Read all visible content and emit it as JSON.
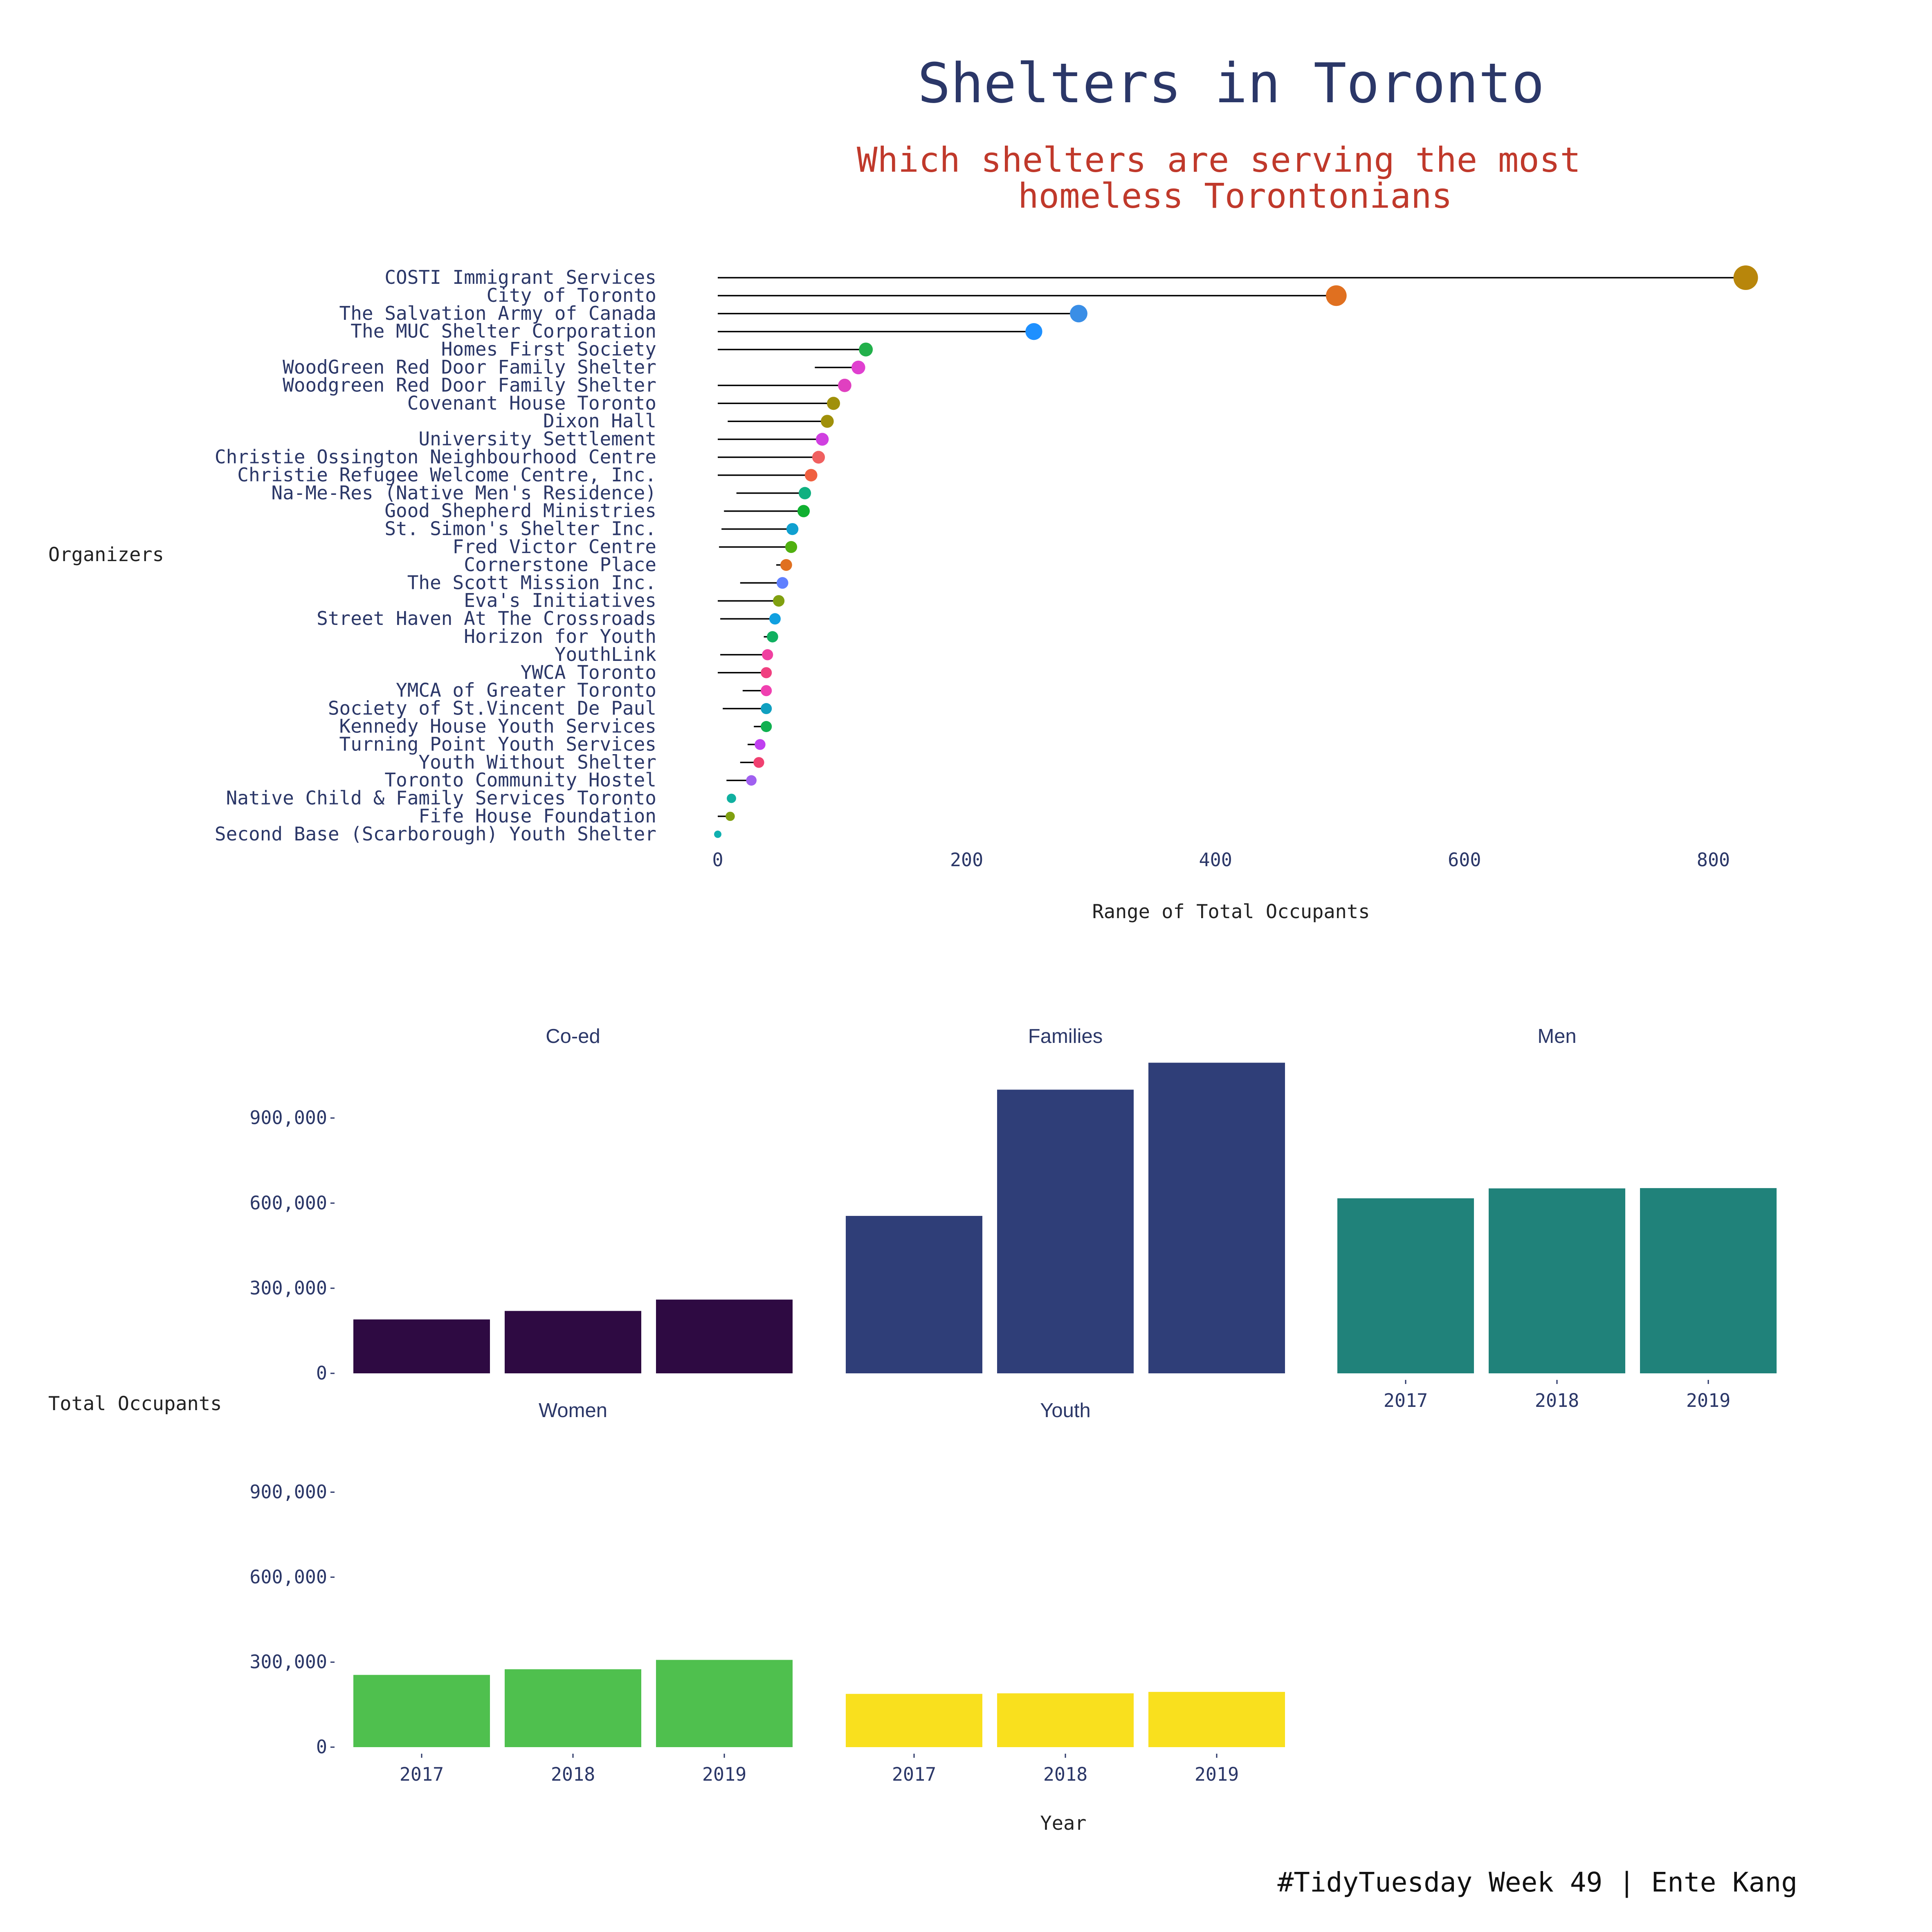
{
  "header": {
    "title": "Shelters in Toronto",
    "subtitle_line1": "Which shelters are serving the most",
    "subtitle_line2": "homeless Torontonians"
  },
  "caption": "#TidyTuesday Week 49 | Ente Kang",
  "chart_data": [
    {
      "type": "dumbbell",
      "xlabel": "Range of Total Occupants",
      "ylabel": "Organizers",
      "xlim": [
        0,
        830
      ],
      "xticks": [
        0,
        200,
        400,
        600,
        800
      ],
      "grid": false,
      "legend": "none",
      "series": [
        {
          "name": "COSTI Immigrant Services",
          "min": 0,
          "max": 826,
          "color": "#b8860b"
        },
        {
          "name": "City of Toronto",
          "min": 0,
          "max": 497,
          "color": "#e07020"
        },
        {
          "name": "The Salvation Army of Canada",
          "min": 0,
          "max": 290,
          "color": "#3a8ee6"
        },
        {
          "name": "The MUC Shelter Corporation",
          "min": 0,
          "max": 254,
          "color": "#1e90ff"
        },
        {
          "name": "Homes First Society",
          "min": 0,
          "max": 119,
          "color": "#22b04b"
        },
        {
          "name": "WoodGreen Red Door Family Shelter",
          "min": 78,
          "max": 113,
          "color": "#e040d0"
        },
        {
          "name": "Woodgreen Red Door Family Shelter",
          "min": 0,
          "max": 102,
          "color": "#e040c0"
        },
        {
          "name": "Covenant House Toronto",
          "min": 0,
          "max": 93,
          "color": "#a0900a"
        },
        {
          "name": "Dixon Hall",
          "min": 8,
          "max": 88,
          "color": "#a0900a"
        },
        {
          "name": "University Settlement",
          "min": 0,
          "max": 84,
          "color": "#d040e0"
        },
        {
          "name": "Christie Ossington Neighbourhood Centre",
          "min": 0,
          "max": 81,
          "color": "#f06060"
        },
        {
          "name": "Christie Refugee Welcome Centre, Inc.",
          "min": 0,
          "max": 75,
          "color": "#f06040"
        },
        {
          "name": "Na-Me-Res (Native Men's Residence)",
          "min": 15,
          "max": 70,
          "color": "#10b080"
        },
        {
          "name": "Good Shepherd Ministries",
          "min": 5,
          "max": 69,
          "color": "#10b030"
        },
        {
          "name": "St. Simon's Shelter Inc.",
          "min": 3,
          "max": 60,
          "color": "#10a0d0"
        },
        {
          "name": "Fred Victor Centre",
          "min": 1,
          "max": 59,
          "color": "#50b010"
        },
        {
          "name": "Cornerstone Place",
          "min": 47,
          "max": 55,
          "color": "#e07020"
        },
        {
          "name": "The Scott Mission Inc.",
          "min": 18,
          "max": 52,
          "color": "#6080ff"
        },
        {
          "name": "Eva's Initiatives",
          "min": 0,
          "max": 49,
          "color": "#80a010"
        },
        {
          "name": "Street Haven At The Crossroads",
          "min": 2,
          "max": 46,
          "color": "#10a0e0"
        },
        {
          "name": "Horizon for Youth",
          "min": 37,
          "max": 44,
          "color": "#10b060"
        },
        {
          "name": "YouthLink",
          "min": 2,
          "max": 40,
          "color": "#f040a0"
        },
        {
          "name": "YWCA Toronto",
          "min": 0,
          "max": 39,
          "color": "#f04080"
        },
        {
          "name": "YMCA of Greater Toronto",
          "min": 20,
          "max": 39,
          "color": "#f040b0"
        },
        {
          "name": "Society of St.Vincent De Paul",
          "min": 4,
          "max": 39,
          "color": "#10a0c0"
        },
        {
          "name": "Kennedy House Youth Services",
          "min": 29,
          "max": 39,
          "color": "#10b050"
        },
        {
          "name": "Turning Point Youth Services",
          "min": 24,
          "max": 34,
          "color": "#c040f0"
        },
        {
          "name": "Youth Without Shelter",
          "min": 18,
          "max": 33,
          "color": "#f04070"
        },
        {
          "name": "Toronto Community Hostel",
          "min": 7,
          "max": 27,
          "color": "#a060f0"
        },
        {
          "name": "Native Child & Family Services Toronto",
          "min": 10,
          "max": 11,
          "color": "#10b0a0"
        },
        {
          "name": "Fife House Foundation",
          "min": 0,
          "max": 10,
          "color": "#80a010"
        },
        {
          "name": "Second Base (Scarborough) Youth Shelter",
          "min": 0,
          "max": 0,
          "color": "#10b0b0"
        }
      ]
    },
    {
      "type": "bar",
      "facet": true,
      "xlabel": "Year",
      "ylabel": "Total Occupants",
      "ylim": [
        0,
        1100000
      ],
      "yticks": [
        0,
        300000,
        600000,
        900000
      ],
      "ytick_labels": [
        "0",
        "300,000",
        "600,000",
        "900,000"
      ],
      "categories": [
        "2017",
        "2018",
        "2019"
      ],
      "series": [
        {
          "name": "Co-ed",
          "values": [
            190000,
            220000,
            260000
          ],
          "color": "#2e0a42"
        },
        {
          "name": "Families",
          "values": [
            555000,
            1000000,
            1095000
          ],
          "color": "#2f3e78"
        },
        {
          "name": "Men",
          "values": [
            617000,
            652000,
            653000
          ],
          "color": "#20827a"
        },
        {
          "name": "Women",
          "values": [
            255000,
            275000,
            308000
          ],
          "color": "#4fc04e"
        },
        {
          "name": "Youth",
          "values": [
            188000,
            190000,
            195000
          ],
          "color": "#f9e01e"
        }
      ]
    }
  ]
}
